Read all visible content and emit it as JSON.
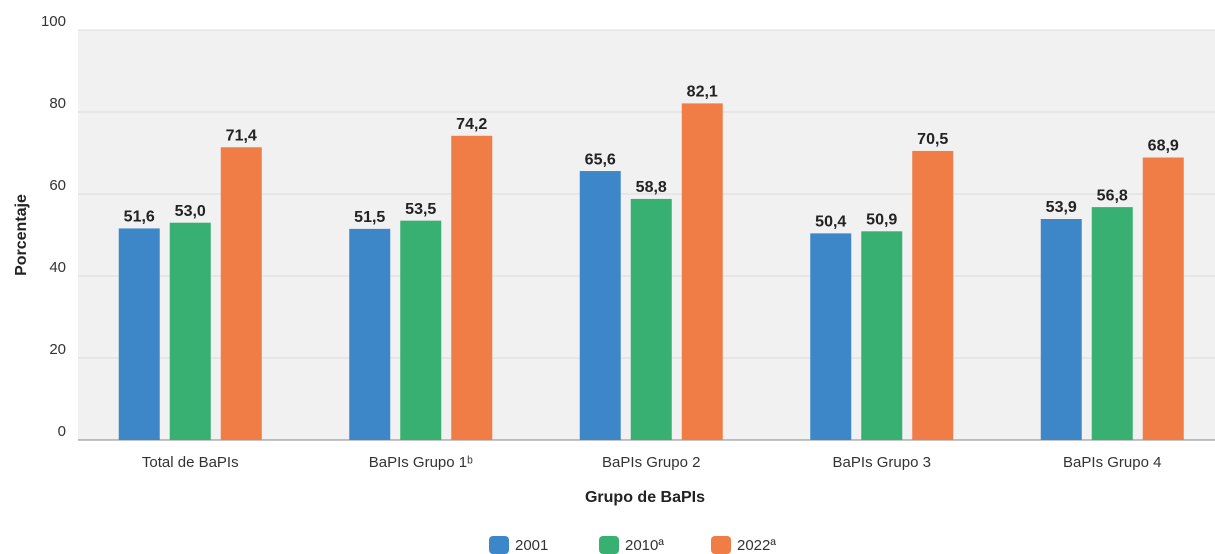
{
  "chart_data": {
    "type": "bar",
    "x_label": "Grupo de BaPIs",
    "y_label": "Porcentaje",
    "categories": [
      "Total de BaPIs",
      "BaPIs Grupo 1ᵇ",
      "BaPIs Grupo 2",
      "BaPIs Grupo 3",
      "BaPIs Grupo 4"
    ],
    "series": [
      {
        "name": "2001",
        "color": "#3d87c9",
        "values": [
          51.6,
          51.5,
          65.6,
          50.4,
          53.9
        ],
        "value_labels": [
          "51,6",
          "51,5",
          "65,6",
          "50,4",
          "53,9"
        ]
      },
      {
        "name": "2010ª",
        "color": "#37b072",
        "values": [
          53.0,
          53.5,
          58.8,
          50.9,
          56.8
        ],
        "value_labels": [
          "53,0",
          "53,5",
          "58,8",
          "50,9",
          "56,8"
        ]
      },
      {
        "name": "2022ª",
        "color": "#f07c46",
        "values": [
          71.4,
          74.2,
          82.1,
          70.5,
          68.9
        ],
        "value_labels": [
          "71,4",
          "74,2",
          "82,1",
          "70,5",
          "68,9"
        ]
      }
    ],
    "ylim": [
      0,
      100
    ],
    "yticks": [
      0,
      20,
      40,
      60,
      80,
      100
    ],
    "grid": true,
    "legend": "bottom"
  }
}
